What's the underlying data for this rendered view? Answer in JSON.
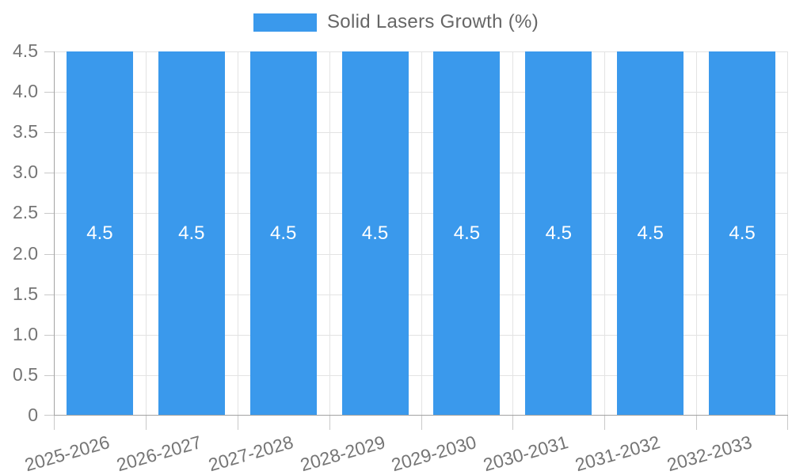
{
  "chart_data": {
    "type": "bar",
    "title": "",
    "legend": {
      "label": "Solid Lasers Growth (%)",
      "position": "top"
    },
    "categories": [
      "2025-2026",
      "2026-2027",
      "2027-2028",
      "2028-2029",
      "2029-2030",
      "2030-2031",
      "2031-2032",
      "2032-2033"
    ],
    "series": [
      {
        "name": "Solid Lasers Growth (%)",
        "values": [
          4.5,
          4.5,
          4.5,
          4.5,
          4.5,
          4.5,
          4.5,
          4.5
        ]
      }
    ],
    "value_labels": [
      "4.5",
      "4.5",
      "4.5",
      "4.5",
      "4.5",
      "4.5",
      "4.5",
      "4.5"
    ],
    "y_ticks": [
      "4.5",
      "4.0",
      "3.5",
      "3.0",
      "2.5",
      "2.0",
      "1.5",
      "1.0",
      "0.5",
      "0"
    ],
    "xlabel": "",
    "ylabel": "",
    "ylim": [
      0,
      4.5
    ],
    "y_tick_step": 0.5,
    "grid": true,
    "x_label_rotation_deg": -16,
    "colors": {
      "bar": "#3a99ec",
      "grid": "#e3e3e3",
      "axis": "#a3a3a3",
      "tick": "#c9c9c9",
      "tick_text": "#757575",
      "legend_text": "#666666",
      "bar_label": "#ffffff"
    }
  }
}
